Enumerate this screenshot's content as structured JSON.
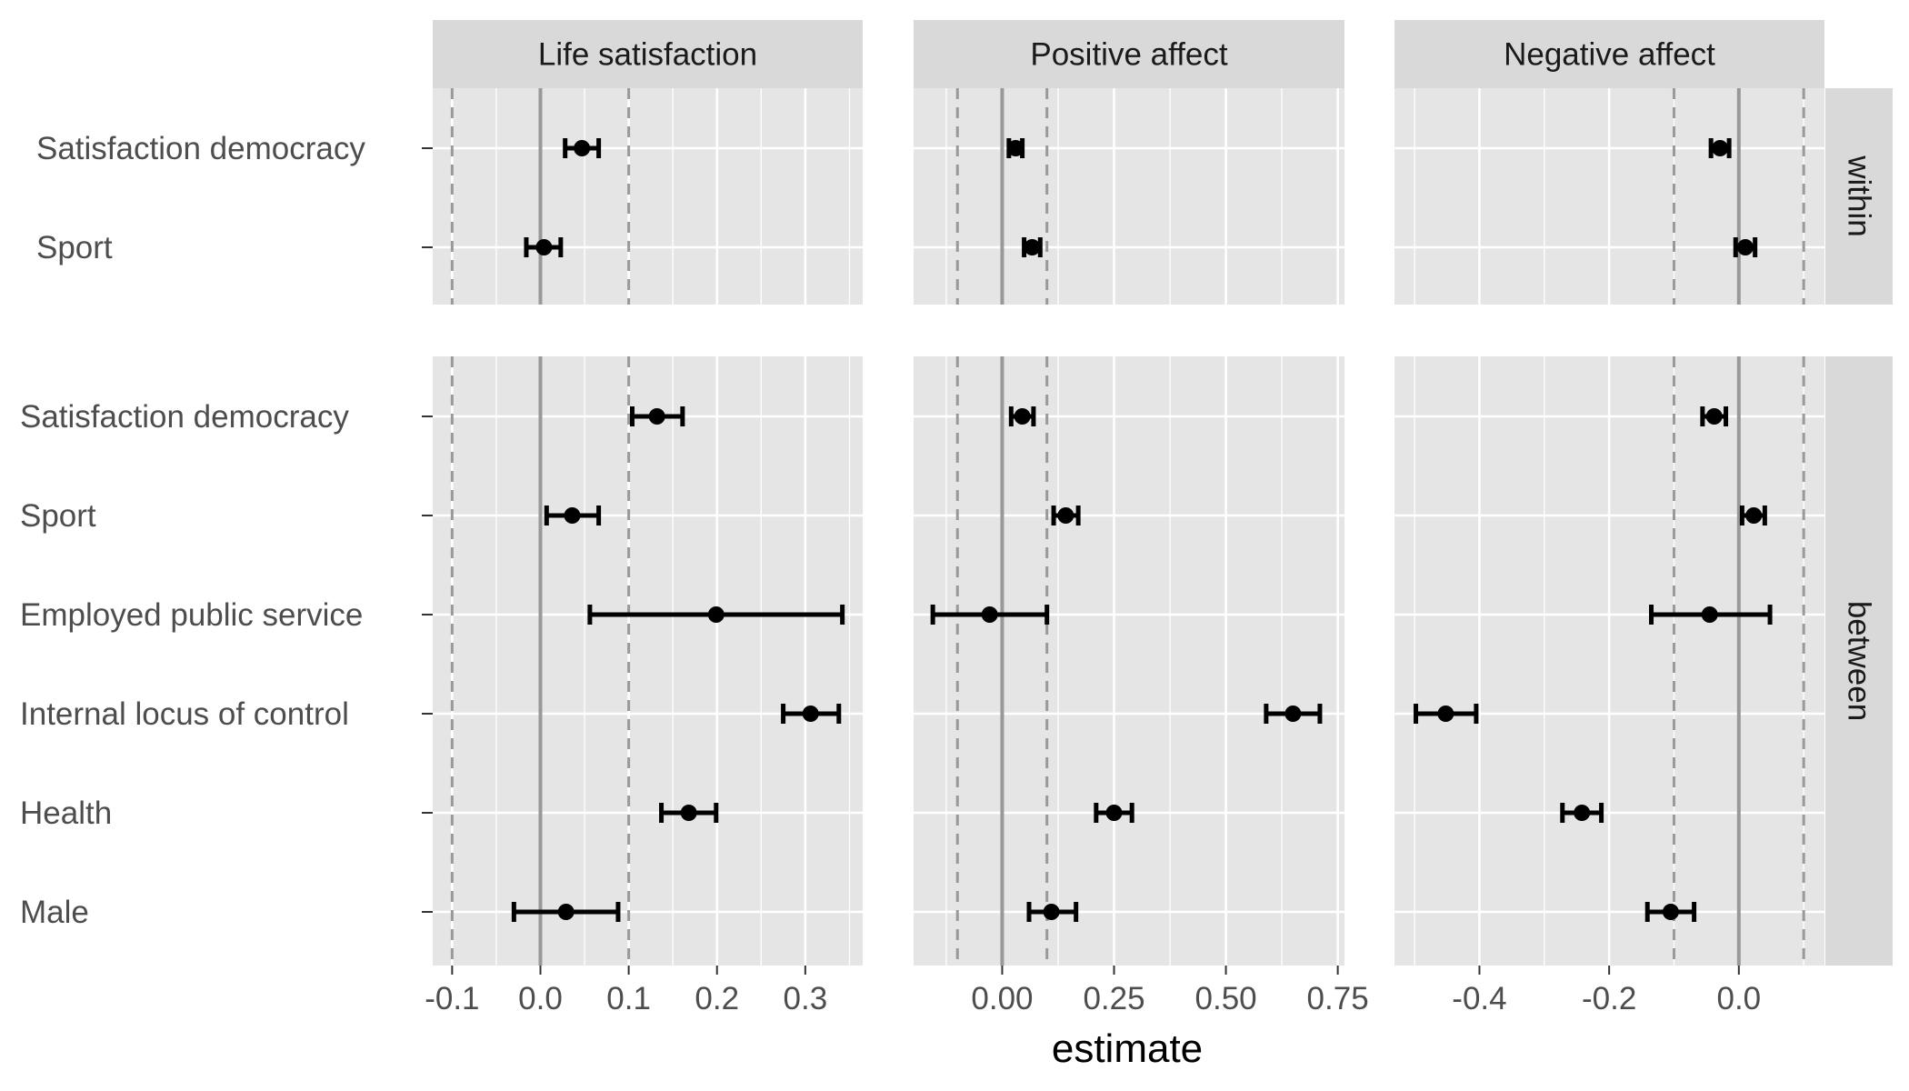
{
  "chart_data": {
    "type": "errorbar",
    "xlabel": "estimate",
    "ylabel": "",
    "title": "",
    "columns": [
      {
        "name": "Life satisfaction",
        "xlim": [
          -0.122,
          0.365
        ],
        "ticks": [
          -0.1,
          0.0,
          0.1,
          0.2,
          0.3
        ],
        "tick_labels": [
          "-0.1",
          "0.0",
          "0.1",
          "0.2",
          "0.3"
        ],
        "ref_lines": [
          -0.1,
          0.1
        ]
      },
      {
        "name": "Positive affect",
        "xlim": [
          -0.198,
          0.765
        ],
        "ticks": [
          0.0,
          0.25,
          0.5,
          0.75
        ],
        "tick_labels": [
          "0.00",
          "0.25",
          "0.50",
          "0.75"
        ],
        "ref_lines": [
          -0.1,
          0.1
        ]
      },
      {
        "name": "Negative affect",
        "xlim": [
          -0.531,
          0.132
        ],
        "ticks": [
          -0.4,
          -0.2,
          0.0
        ],
        "tick_labels": [
          "-0.4",
          "-0.2",
          "0.0"
        ],
        "ref_lines": [
          -0.1,
          0.1
        ]
      }
    ],
    "rows": [
      {
        "name": "within",
        "categories": [
          "Satisfaction democracy",
          "Sport"
        ]
      },
      {
        "name": "between",
        "categories": [
          "Satisfaction democracy",
          "Sport",
          "Employed public service",
          "Internal locus of control",
          "Health",
          "Male"
        ]
      }
    ],
    "points": [
      [
        [
          {
            "est": 0.047,
            "lo": 0.028,
            "hi": 0.066
          },
          {
            "est": 0.004,
            "lo": -0.016,
            "hi": 0.023
          }
        ],
        [
          {
            "est": 0.132,
            "lo": 0.104,
            "hi": 0.161
          },
          {
            "est": 0.036,
            "lo": 0.007,
            "hi": 0.066
          },
          {
            "est": 0.199,
            "lo": 0.056,
            "hi": 0.342
          },
          {
            "est": 0.306,
            "lo": 0.275,
            "hi": 0.338
          },
          {
            "est": 0.168,
            "lo": 0.137,
            "hi": 0.199
          },
          {
            "est": 0.029,
            "lo": -0.03,
            "hi": 0.088
          }
        ]
      ],
      [
        [
          {
            "est": 0.03,
            "lo": 0.015,
            "hi": 0.045
          },
          {
            "est": 0.067,
            "lo": 0.049,
            "hi": 0.085
          }
        ],
        [
          {
            "est": 0.045,
            "lo": 0.02,
            "hi": 0.07
          },
          {
            "est": 0.142,
            "lo": 0.115,
            "hi": 0.17
          },
          {
            "est": -0.028,
            "lo": -0.155,
            "hi": 0.1
          },
          {
            "est": 0.65,
            "lo": 0.59,
            "hi": 0.71
          },
          {
            "est": 0.25,
            "lo": 0.21,
            "hi": 0.29
          },
          {
            "est": 0.11,
            "lo": 0.06,
            "hi": 0.165
          }
        ]
      ],
      [
        [
          {
            "est": -0.029,
            "lo": -0.043,
            "hi": -0.015
          },
          {
            "est": 0.01,
            "lo": -0.005,
            "hi": 0.025
          }
        ],
        [
          {
            "est": -0.038,
            "lo": -0.056,
            "hi": -0.02
          },
          {
            "est": 0.023,
            "lo": 0.005,
            "hi": 0.04
          },
          {
            "est": -0.045,
            "lo": -0.135,
            "hi": 0.048
          },
          {
            "est": -0.452,
            "lo": -0.498,
            "hi": -0.405
          },
          {
            "est": -0.242,
            "lo": -0.272,
            "hi": -0.212
          },
          {
            "est": -0.105,
            "lo": -0.141,
            "hi": -0.069
          }
        ]
      ]
    ]
  },
  "colors": {
    "panel_bg": "#e5e5e5",
    "grid": "#ffffff",
    "strip_bg": "#d9d9d9",
    "zero_line": "#999999",
    "ref_line": "#999999",
    "points": "#000000",
    "tick": "#333333"
  }
}
